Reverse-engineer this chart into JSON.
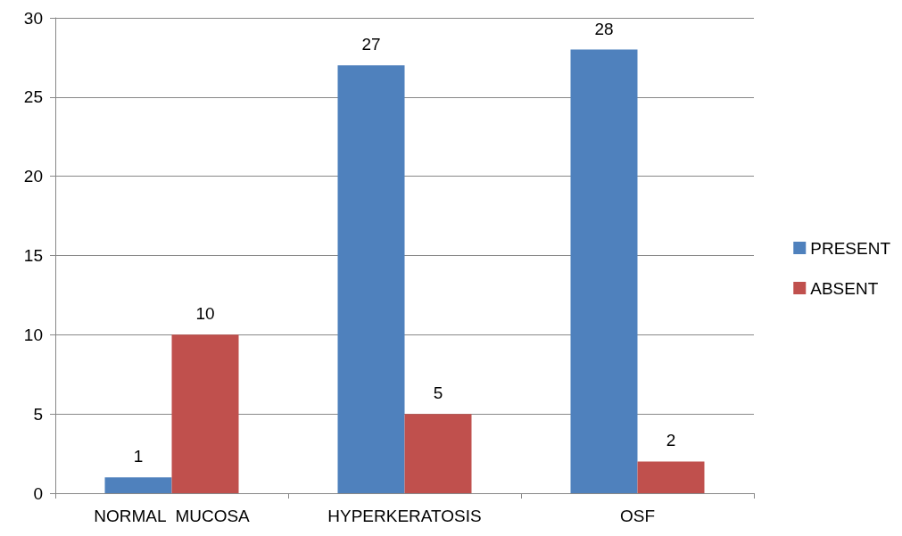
{
  "chart_data": {
    "type": "bar",
    "categories": [
      "NORMAL  MUCOSA",
      "HYPERKERATOSIS",
      "OSF"
    ],
    "series": [
      {
        "name": "PRESENT",
        "color": "#4f81bd",
        "values": [
          1,
          27,
          28
        ]
      },
      {
        "name": "ABSENT",
        "color": "#c0504d",
        "values": [
          10,
          5,
          2
        ]
      }
    ],
    "ylim": [
      0,
      30
    ],
    "yticks": [
      0,
      5,
      10,
      15,
      20,
      25,
      30
    ],
    "grid": "y",
    "legend": "right",
    "data_labels": true
  }
}
